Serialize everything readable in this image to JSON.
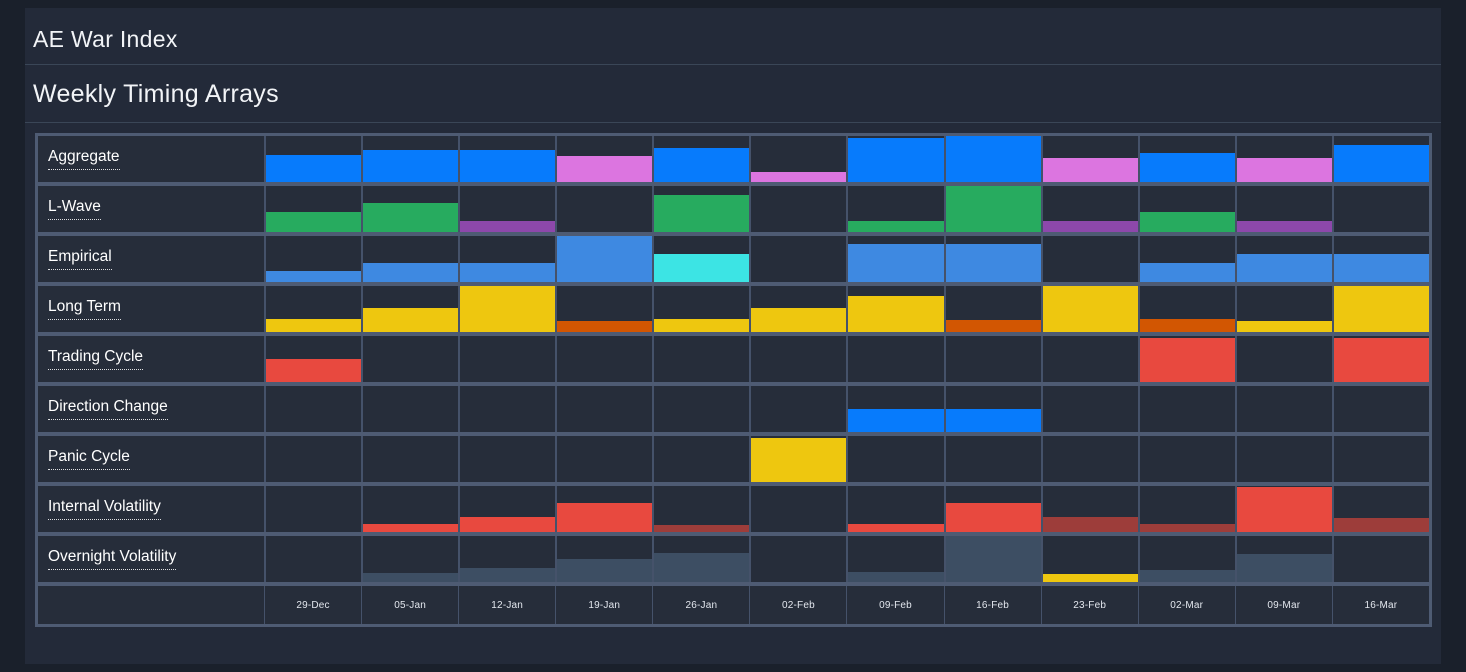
{
  "header": {
    "title": "AE War Index",
    "subtitle": "Weekly Timing Arrays"
  },
  "chart_data": {
    "type": "bar",
    "subtype": "weekly-timing-array-grid",
    "title": "AE War Index — Weekly Timing Arrays",
    "categories": [
      "29-Dec",
      "05-Jan",
      "12-Jan",
      "19-Jan",
      "26-Jan",
      "02-Feb",
      "09-Feb",
      "16-Feb",
      "23-Feb",
      "02-Mar",
      "09-Mar",
      "16-Mar"
    ],
    "value_unit": "percent-of-row-height",
    "palette": {
      "blue": "#077bfc",
      "violet": "#dc75e0",
      "green": "#27ab5f",
      "purple": "#8d48ab",
      "skyblue": "#3e89e1",
      "cyan": "#3ce4e4",
      "gold": "#eec70f",
      "orange": "#d25602",
      "red": "#e8493f",
      "maroon": "#9d3d3a",
      "slate": "#3d4e63"
    },
    "rows": [
      {
        "label": "Aggregate",
        "bars": [
          {
            "v": 59,
            "color": "blue"
          },
          {
            "v": 70,
            "color": "blue"
          },
          {
            "v": 70,
            "color": "blue"
          },
          {
            "v": 57,
            "color": "violet"
          },
          {
            "v": 75,
            "color": "blue"
          },
          {
            "v": 21,
            "color": "violet"
          },
          {
            "v": 95,
            "color": "blue"
          },
          {
            "v": 100,
            "color": "blue"
          },
          {
            "v": 52,
            "color": "violet"
          },
          {
            "v": 64,
            "color": "blue"
          },
          {
            "v": 52,
            "color": "violet"
          },
          {
            "v": 81,
            "color": "blue"
          }
        ]
      },
      {
        "label": "L-Wave",
        "bars": [
          {
            "v": 43,
            "color": "green"
          },
          {
            "v": 62,
            "color": "green"
          },
          {
            "v": 25,
            "color": "purple"
          },
          null,
          {
            "v": 81,
            "color": "green"
          },
          null,
          {
            "v": 25,
            "color": "green"
          },
          {
            "v": 100,
            "color": "green"
          },
          {
            "v": 25,
            "color": "purple"
          },
          {
            "v": 43,
            "color": "green"
          },
          {
            "v": 25,
            "color": "purple"
          },
          null
        ]
      },
      {
        "label": "Empirical",
        "bars": [
          {
            "v": 23,
            "color": "skyblue"
          },
          {
            "v": 41,
            "color": "skyblue"
          },
          {
            "v": 41,
            "color": "skyblue"
          },
          {
            "v": 100,
            "color": "skyblue"
          },
          {
            "v": 60,
            "color": "cyan"
          },
          null,
          {
            "v": 83,
            "color": "skyblue"
          },
          {
            "v": 83,
            "color": "skyblue"
          },
          null,
          {
            "v": 41,
            "color": "skyblue"
          },
          {
            "v": 60,
            "color": "skyblue"
          },
          {
            "v": 60,
            "color": "skyblue"
          }
        ]
      },
      {
        "label": "Long Term",
        "bars": [
          {
            "v": 28,
            "color": "gold"
          },
          {
            "v": 52,
            "color": "gold"
          },
          {
            "v": 100,
            "color": "gold"
          },
          {
            "v": 25,
            "color": "orange"
          },
          {
            "v": 28,
            "color": "gold"
          },
          {
            "v": 52,
            "color": "gold"
          },
          {
            "v": 78,
            "color": "gold"
          },
          {
            "v": 27,
            "color": "orange"
          },
          {
            "v": 100,
            "color": "gold"
          },
          {
            "v": 28,
            "color": "orange"
          },
          {
            "v": 25,
            "color": "gold"
          },
          {
            "v": 100,
            "color": "gold"
          }
        ]
      },
      {
        "label": "Trading Cycle",
        "bars": [
          {
            "v": 50,
            "color": "red"
          },
          null,
          null,
          null,
          null,
          null,
          null,
          null,
          null,
          {
            "v": 96,
            "color": "red"
          },
          null,
          {
            "v": 96,
            "color": "red"
          }
        ]
      },
      {
        "label": "Direction Change",
        "bars": [
          null,
          null,
          null,
          null,
          null,
          null,
          {
            "v": 50,
            "color": "blue"
          },
          {
            "v": 50,
            "color": "blue"
          },
          null,
          null,
          null,
          null
        ]
      },
      {
        "label": "Panic Cycle",
        "bars": [
          null,
          null,
          null,
          null,
          null,
          {
            "v": 96,
            "color": "gold"
          },
          null,
          null,
          null,
          null,
          null,
          null
        ]
      },
      {
        "label": "Internal Volatility",
        "bars": [
          null,
          {
            "v": 17,
            "color": "red"
          },
          {
            "v": 32,
            "color": "red"
          },
          {
            "v": 62,
            "color": "red"
          },
          {
            "v": 15,
            "color": "maroon"
          },
          null,
          {
            "v": 17,
            "color": "red"
          },
          {
            "v": 62,
            "color": "red"
          },
          {
            "v": 32,
            "color": "maroon"
          },
          {
            "v": 17,
            "color": "maroon"
          },
          {
            "v": 97,
            "color": "red"
          },
          {
            "v": 30,
            "color": "maroon"
          }
        ]
      },
      {
        "label": "Overnight Volatility",
        "bars": [
          null,
          {
            "v": 19,
            "color": "slate"
          },
          {
            "v": 31,
            "color": "slate"
          },
          {
            "v": 50,
            "color": "slate"
          },
          {
            "v": 62,
            "color": "slate"
          },
          null,
          {
            "v": 21,
            "color": "slate"
          },
          {
            "v": 100,
            "color": "slate"
          },
          {
            "v": 17,
            "color": "gold"
          },
          {
            "v": 26,
            "color": "slate"
          },
          {
            "v": 60,
            "color": "slate"
          },
          null
        ]
      }
    ]
  }
}
